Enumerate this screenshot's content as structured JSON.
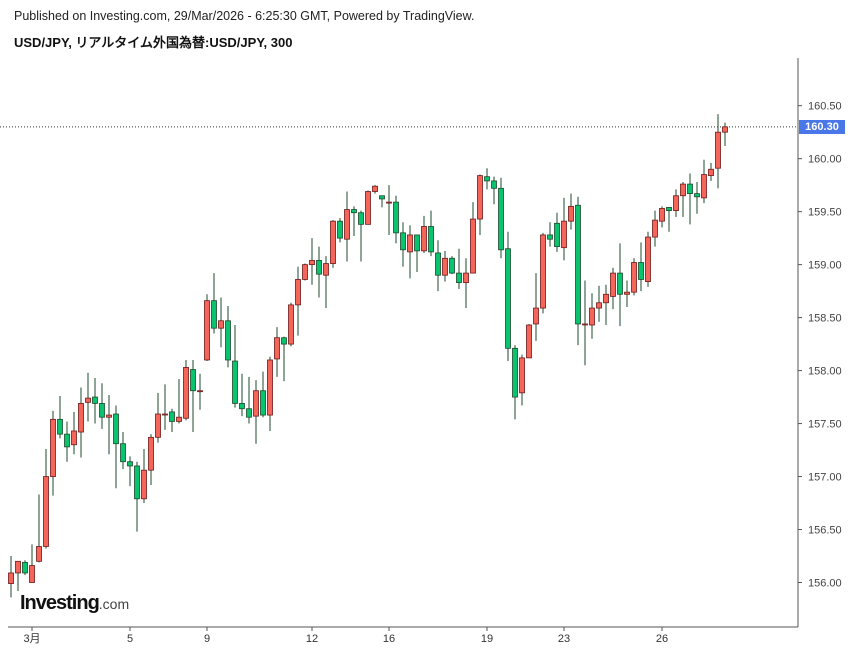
{
  "header": {
    "published": "Published on Investing.com, 29/Mar/2026 - 6:25:30 GMT, Powered by TradingView.",
    "symbol_title": "USD/JPY, リアルタイム外国為替:USD/JPY, 300"
  },
  "logo": {
    "main": "Investing",
    "suffix": ".com"
  },
  "chart_data": {
    "type": "candlestick",
    "candle_format": [
      "open",
      "high",
      "low",
      "close"
    ],
    "candles": [
      [
        155.99,
        156.25,
        155.86,
        156.09
      ],
      [
        156.09,
        156.2,
        155.92,
        156.2
      ],
      [
        156.19,
        156.21,
        156.07,
        156.09
      ],
      [
        156.0,
        156.36,
        156.0,
        156.16
      ],
      [
        156.2,
        156.83,
        156.19,
        156.34
      ],
      [
        156.34,
        157.26,
        156.32,
        157.0
      ],
      [
        157.0,
        157.62,
        156.82,
        157.54
      ],
      [
        157.54,
        157.76,
        157.36,
        157.4
      ],
      [
        157.4,
        157.52,
        157.14,
        157.28
      ],
      [
        157.3,
        157.61,
        157.21,
        157.43
      ],
      [
        157.42,
        157.84,
        157.18,
        157.69
      ],
      [
        157.7,
        157.98,
        157.52,
        157.74
      ],
      [
        157.75,
        157.93,
        157.5,
        157.69
      ],
      [
        157.69,
        157.88,
        157.45,
        157.56
      ],
      [
        157.56,
        157.77,
        157.21,
        157.58
      ],
      [
        157.59,
        157.67,
        156.89,
        157.31
      ],
      [
        157.31,
        157.42,
        157.07,
        157.14
      ],
      [
        157.14,
        157.19,
        156.91,
        157.1
      ],
      [
        157.1,
        157.14,
        156.48,
        156.79
      ],
      [
        156.79,
        157.26,
        156.75,
        157.06
      ],
      [
        157.06,
        157.4,
        156.92,
        157.37
      ],
      [
        157.37,
        157.79,
        157.32,
        157.59
      ],
      [
        157.59,
        157.87,
        157.44,
        157.59
      ],
      [
        157.61,
        157.64,
        157.42,
        157.52
      ],
      [
        157.52,
        157.92,
        157.5,
        157.56
      ],
      [
        157.55,
        158.1,
        157.53,
        158.03
      ],
      [
        158.01,
        158.1,
        157.42,
        157.81
      ],
      [
        157.81,
        157.97,
        157.63,
        157.81
      ],
      [
        158.1,
        158.72,
        158.09,
        158.66
      ],
      [
        158.66,
        158.92,
        158.35,
        158.4
      ],
      [
        158.4,
        158.69,
        158.22,
        158.47
      ],
      [
        158.47,
        158.61,
        158.03,
        158.1
      ],
      [
        158.09,
        158.43,
        157.65,
        157.69
      ],
      [
        157.69,
        157.97,
        157.57,
        157.64
      ],
      [
        157.64,
        157.94,
        157.5,
        157.56
      ],
      [
        157.57,
        157.91,
        157.31,
        157.81
      ],
      [
        157.81,
        157.99,
        157.56,
        157.58
      ],
      [
        157.58,
        158.13,
        157.43,
        158.1
      ],
      [
        158.11,
        158.41,
        157.94,
        158.31
      ],
      [
        158.31,
        158.32,
        157.9,
        158.25
      ],
      [
        158.25,
        158.64,
        158.23,
        158.62
      ],
      [
        158.62,
        158.98,
        158.33,
        158.86
      ],
      [
        158.86,
        159.01,
        158.85,
        159.0
      ],
      [
        159.0,
        159.25,
        158.81,
        159.04
      ],
      [
        159.04,
        159.17,
        158.69,
        158.91
      ],
      [
        158.9,
        159.08,
        158.59,
        159.01
      ],
      [
        159.01,
        159.42,
        158.97,
        159.41
      ],
      [
        159.41,
        159.44,
        159.21,
        159.25
      ],
      [
        159.24,
        159.69,
        159.03,
        159.52
      ],
      [
        159.52,
        159.55,
        159.27,
        159.49
      ],
      [
        159.49,
        159.51,
        159.03,
        159.38
      ],
      [
        159.38,
        159.7,
        159.38,
        159.69
      ],
      [
        159.69,
        159.75,
        159.67,
        159.74
      ],
      [
        159.65,
        159.65,
        159.54,
        159.62
      ],
      [
        159.59,
        159.75,
        159.28,
        159.59
      ],
      [
        159.59,
        159.65,
        159.2,
        159.3
      ],
      [
        159.3,
        159.4,
        158.98,
        159.14
      ],
      [
        159.12,
        159.37,
        158.87,
        159.28
      ],
      [
        159.28,
        159.28,
        158.93,
        159.13
      ],
      [
        159.13,
        159.46,
        159.11,
        159.36
      ],
      [
        159.36,
        159.51,
        159.08,
        159.12
      ],
      [
        159.11,
        159.23,
        158.75,
        158.9
      ],
      [
        158.9,
        159.13,
        158.84,
        159.06
      ],
      [
        159.06,
        159.08,
        158.91,
        158.92
      ],
      [
        158.92,
        159.15,
        158.77,
        158.83
      ],
      [
        158.83,
        159.06,
        158.59,
        158.92
      ],
      [
        158.92,
        159.59,
        158.92,
        159.43
      ],
      [
        159.43,
        159.85,
        159.28,
        159.84
      ],
      [
        159.83,
        159.91,
        159.71,
        159.79
      ],
      [
        159.79,
        159.83,
        159.57,
        159.72
      ],
      [
        159.72,
        159.82,
        159.06,
        159.14
      ],
      [
        159.15,
        159.31,
        158.09,
        158.21
      ],
      [
        158.21,
        158.24,
        157.54,
        157.75
      ],
      [
        157.79,
        158.15,
        157.67,
        158.12
      ],
      [
        158.12,
        158.44,
        158.12,
        158.43
      ],
      [
        158.44,
        158.92,
        158.28,
        158.59
      ],
      [
        158.59,
        159.3,
        158.54,
        159.28
      ],
      [
        159.28,
        159.4,
        159.17,
        159.24
      ],
      [
        159.39,
        159.49,
        159.12,
        159.17
      ],
      [
        159.16,
        159.63,
        159.04,
        159.41
      ],
      [
        159.41,
        159.67,
        159.33,
        159.55
      ],
      [
        159.56,
        159.64,
        158.24,
        158.44
      ],
      [
        158.44,
        158.85,
        158.05,
        158.44
      ],
      [
        158.43,
        158.73,
        158.3,
        158.59
      ],
      [
        158.59,
        158.8,
        158.46,
        158.64
      ],
      [
        158.64,
        158.81,
        158.43,
        158.72
      ],
      [
        158.7,
        158.97,
        158.58,
        158.92
      ],
      [
        158.92,
        159.2,
        158.42,
        158.72
      ],
      [
        158.72,
        158.85,
        158.6,
        158.74
      ],
      [
        158.74,
        159.06,
        158.71,
        159.02
      ],
      [
        159.02,
        159.21,
        158.75,
        158.86
      ],
      [
        158.84,
        159.31,
        158.79,
        159.26
      ],
      [
        159.26,
        159.51,
        159.17,
        159.42
      ],
      [
        159.41,
        159.55,
        159.35,
        159.53
      ],
      [
        159.54,
        159.54,
        159.31,
        159.51
      ],
      [
        159.51,
        159.71,
        159.45,
        159.65
      ],
      [
        159.65,
        159.78,
        159.45,
        159.76
      ],
      [
        159.76,
        159.86,
        159.38,
        159.67
      ],
      [
        159.67,
        159.78,
        159.48,
        159.64
      ],
      [
        159.63,
        159.99,
        159.58,
        159.85
      ],
      [
        159.84,
        159.96,
        159.79,
        159.9
      ],
      [
        159.91,
        160.42,
        159.72,
        160.25
      ],
      [
        160.25,
        160.34,
        160.12,
        160.3
      ]
    ],
    "x_ticks": [
      {
        "label": "3月",
        "index": 3
      },
      {
        "label": "5",
        "index": 17
      },
      {
        "label": "9",
        "index": 28
      },
      {
        "label": "12",
        "index": 43
      },
      {
        "label": "16",
        "index": 54
      },
      {
        "label": "19",
        "index": 68
      },
      {
        "label": "23",
        "index": 79
      },
      {
        "label": "26",
        "index": 93
      }
    ],
    "y_ticks": [
      "156.00",
      "156.50",
      "157.00",
      "157.50",
      "158.00",
      "158.50",
      "159.00",
      "159.50",
      "160.00",
      "160.50"
    ],
    "ylim": [
      155.58,
      160.95
    ],
    "last_price": "160.30",
    "last_price_value": 160.3,
    "grid": false,
    "colors": {
      "up": "#f4665a",
      "up_border": "#6e1a1a",
      "down": "#0ac36e",
      "down_border": "#1c4a2c",
      "wick": "#1e4a2c",
      "last_price": "#4a77e8"
    }
  }
}
